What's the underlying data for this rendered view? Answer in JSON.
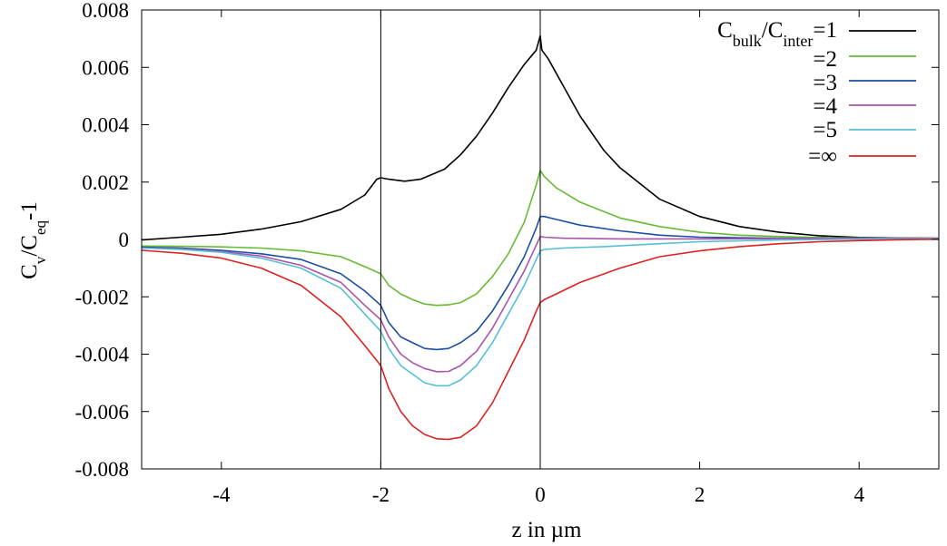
{
  "chart_data": {
    "type": "line",
    "title": "",
    "xlabel": "z in µm",
    "ylabel": {
      "base": "C",
      "sub1": "v",
      "slash": "/C",
      "sub2": "eq",
      "suffix": "-1"
    },
    "xlim": [
      -5,
      5
    ],
    "ylim": [
      -0.008,
      0.008
    ],
    "xticks": [
      {
        "v": -4,
        "label": "-4"
      },
      {
        "v": -2,
        "label": "-2"
      },
      {
        "v": 0,
        "label": "0"
      },
      {
        "v": 2,
        "label": "2"
      },
      {
        "v": 4,
        "label": "4"
      }
    ],
    "yticks": [
      {
        "v": 0.008,
        "label": "0.008"
      },
      {
        "v": 0.006,
        "label": "0.006"
      },
      {
        "v": 0.004,
        "label": "0.004"
      },
      {
        "v": 0.002,
        "label": "0.002"
      },
      {
        "v": 0,
        "label": "0"
      },
      {
        "v": -0.002,
        "label": "-0.002"
      },
      {
        "v": -0.004,
        "label": "-0.004"
      },
      {
        "v": -0.006,
        "label": "-0.006"
      },
      {
        "v": -0.008,
        "label": "-0.008"
      }
    ],
    "vlines": [
      -2,
      0
    ],
    "grid": false,
    "legend_position": "top-right",
    "legend_first": {
      "base": "C",
      "sub1": "bulk",
      "mid": "/C",
      "sub2": "inter",
      "suffix": "=1"
    },
    "series": [
      {
        "name": "=1",
        "color": "#000000",
        "points": [
          [
            -5,
            -2e-05
          ],
          [
            -4.5,
            8e-05
          ],
          [
            -4,
            0.00018
          ],
          [
            -3.5,
            0.00036
          ],
          [
            -3,
            0.00062
          ],
          [
            -2.5,
            0.00105
          ],
          [
            -2.2,
            0.00155
          ],
          [
            -2.05,
            0.0021
          ],
          [
            -2.0,
            0.00215
          ],
          [
            -1.9,
            0.0021
          ],
          [
            -1.7,
            0.00203
          ],
          [
            -1.5,
            0.0021
          ],
          [
            -1.2,
            0.00245
          ],
          [
            -1,
            0.00295
          ],
          [
            -0.8,
            0.0036
          ],
          [
            -0.6,
            0.0044
          ],
          [
            -0.4,
            0.0053
          ],
          [
            -0.2,
            0.0061
          ],
          [
            -0.05,
            0.0066
          ],
          [
            0,
            0.0071
          ],
          [
            0.02,
            0.0066
          ],
          [
            0.1,
            0.0063
          ],
          [
            0.3,
            0.0053
          ],
          [
            0.5,
            0.0043
          ],
          [
            0.8,
            0.0031
          ],
          [
            1,
            0.0025
          ],
          [
            1.5,
            0.0014
          ],
          [
            2,
            0.0008
          ],
          [
            2.5,
            0.00045
          ],
          [
            3,
            0.00025
          ],
          [
            3.5,
            0.00013
          ],
          [
            4,
            7e-05
          ],
          [
            4.5,
            5e-05
          ],
          [
            5,
            4e-05
          ]
        ]
      },
      {
        "name": "=2",
        "color": "#66bb33",
        "points": [
          [
            -5,
            -0.00023
          ],
          [
            -4.5,
            -0.00024
          ],
          [
            -4,
            -0.00026
          ],
          [
            -3.5,
            -0.0003
          ],
          [
            -3,
            -0.0004
          ],
          [
            -2.5,
            -0.0006
          ],
          [
            -2.2,
            -0.00095
          ],
          [
            -2.0,
            -0.0012
          ],
          [
            -1.9,
            -0.0016
          ],
          [
            -1.75,
            -0.0019
          ],
          [
            -1.6,
            -0.0021
          ],
          [
            -1.45,
            -0.00225
          ],
          [
            -1.3,
            -0.0023
          ],
          [
            -1.15,
            -0.00228
          ],
          [
            -1,
            -0.0022
          ],
          [
            -0.8,
            -0.0019
          ],
          [
            -0.6,
            -0.0013
          ],
          [
            -0.4,
            -0.0005
          ],
          [
            -0.2,
            0.0006
          ],
          [
            -0.05,
            0.0019
          ],
          [
            0,
            0.0024
          ],
          [
            0.05,
            0.0022
          ],
          [
            0.2,
            0.0018
          ],
          [
            0.5,
            0.0013
          ],
          [
            1,
            0.00075
          ],
          [
            1.5,
            0.00045
          ],
          [
            2,
            0.00025
          ],
          [
            2.5,
            0.00015
          ],
          [
            3,
            0.0001
          ],
          [
            3.5,
            7e-05
          ],
          [
            4,
            5e-05
          ],
          [
            4.5,
            4e-05
          ],
          [
            5,
            4e-05
          ]
        ]
      },
      {
        "name": "=3",
        "color": "#1a4fa3",
        "points": [
          [
            -5,
            -0.00027
          ],
          [
            -4.5,
            -0.0003
          ],
          [
            -4,
            -0.00038
          ],
          [
            -3.5,
            -0.0005
          ],
          [
            -3,
            -0.0007
          ],
          [
            -2.5,
            -0.0012
          ],
          [
            -2.2,
            -0.0018
          ],
          [
            -2.0,
            -0.0023
          ],
          [
            -1.9,
            -0.0029
          ],
          [
            -1.75,
            -0.0034
          ],
          [
            -1.6,
            -0.0036
          ],
          [
            -1.45,
            -0.0038
          ],
          [
            -1.3,
            -0.00384
          ],
          [
            -1.15,
            -0.0038
          ],
          [
            -1,
            -0.0036
          ],
          [
            -0.8,
            -0.0032
          ],
          [
            -0.6,
            -0.0025
          ],
          [
            -0.4,
            -0.0016
          ],
          [
            -0.2,
            -0.0006
          ],
          [
            -0.05,
            0.0004
          ],
          [
            0,
            0.0008
          ],
          [
            0.05,
            0.0008
          ],
          [
            0.2,
            0.0007
          ],
          [
            0.5,
            0.0005
          ],
          [
            1,
            0.0003
          ],
          [
            1.5,
            0.00015
          ],
          [
            2,
            8e-05
          ],
          [
            3,
            4e-05
          ],
          [
            4,
            4e-05
          ],
          [
            5,
            4e-05
          ]
        ]
      },
      {
        "name": "=4",
        "color": "#aa55aa",
        "points": [
          [
            -5,
            -0.0003
          ],
          [
            -4.5,
            -0.00033
          ],
          [
            -4,
            -0.00042
          ],
          [
            -3.5,
            -0.00058
          ],
          [
            -3,
            -0.0009
          ],
          [
            -2.5,
            -0.0015
          ],
          [
            -2.2,
            -0.0023
          ],
          [
            -2.0,
            -0.0028
          ],
          [
            -1.9,
            -0.0034
          ],
          [
            -1.75,
            -0.004
          ],
          [
            -1.6,
            -0.0043
          ],
          [
            -1.45,
            -0.0045
          ],
          [
            -1.3,
            -0.00461
          ],
          [
            -1.15,
            -0.0046
          ],
          [
            -1,
            -0.0044
          ],
          [
            -0.8,
            -0.0039
          ],
          [
            -0.6,
            -0.0031
          ],
          [
            -0.4,
            -0.0021
          ],
          [
            -0.2,
            -0.0011
          ],
          [
            -0.05,
            -0.0002
          ],
          [
            0,
            0.0001
          ],
          [
            0.05,
            8e-05
          ],
          [
            0.3,
            4e-05
          ],
          [
            1,
            2e-05
          ],
          [
            2,
            2e-05
          ],
          [
            3,
            3e-05
          ],
          [
            4,
            4e-05
          ],
          [
            5,
            4e-05
          ]
        ]
      },
      {
        "name": "=5",
        "color": "#55c0d5",
        "points": [
          [
            -5,
            -0.0003
          ],
          [
            -4.5,
            -0.00035
          ],
          [
            -4,
            -0.00045
          ],
          [
            -3.5,
            -0.00065
          ],
          [
            -3,
            -0.001
          ],
          [
            -2.5,
            -0.0017
          ],
          [
            -2.2,
            -0.0026
          ],
          [
            -2.0,
            -0.0032
          ],
          [
            -1.9,
            -0.0038
          ],
          [
            -1.75,
            -0.0044
          ],
          [
            -1.6,
            -0.0047
          ],
          [
            -1.45,
            -0.005
          ],
          [
            -1.3,
            -0.0051
          ],
          [
            -1.15,
            -0.0051
          ],
          [
            -1,
            -0.0049
          ],
          [
            -0.8,
            -0.0044
          ],
          [
            -0.6,
            -0.0036
          ],
          [
            -0.4,
            -0.0026
          ],
          [
            -0.2,
            -0.0016
          ],
          [
            -0.05,
            -0.0007
          ],
          [
            0,
            -0.0004
          ],
          [
            0.05,
            -0.00035
          ],
          [
            0.3,
            -0.0003
          ],
          [
            0.8,
            -0.00025
          ],
          [
            1.5,
            -0.00015
          ],
          [
            2,
            -8e-05
          ],
          [
            3,
            -2e-05
          ],
          [
            4,
            1e-05
          ],
          [
            5,
            3e-05
          ]
        ]
      },
      {
        "name": "=∞",
        "color": "#dd2222",
        "points": [
          [
            -5,
            -0.00038
          ],
          [
            -4.5,
            -0.00048
          ],
          [
            -4,
            -0.00065
          ],
          [
            -3.5,
            -0.001
          ],
          [
            -3,
            -0.0016
          ],
          [
            -2.5,
            -0.0027
          ],
          [
            -2.2,
            -0.0037
          ],
          [
            -2.0,
            -0.0044
          ],
          [
            -1.9,
            -0.0052
          ],
          [
            -1.75,
            -0.006
          ],
          [
            -1.6,
            -0.0065
          ],
          [
            -1.45,
            -0.0068
          ],
          [
            -1.3,
            -0.00695
          ],
          [
            -1.15,
            -0.00697
          ],
          [
            -1,
            -0.0069
          ],
          [
            -0.8,
            -0.0065
          ],
          [
            -0.6,
            -0.0057
          ],
          [
            -0.4,
            -0.0046
          ],
          [
            -0.2,
            -0.0035
          ],
          [
            -0.05,
            -0.0025
          ],
          [
            0,
            -0.0022
          ],
          [
            0.05,
            -0.0021
          ],
          [
            0.2,
            -0.0019
          ],
          [
            0.5,
            -0.0015
          ],
          [
            1,
            -0.001
          ],
          [
            1.5,
            -0.0006
          ],
          [
            2,
            -0.0004
          ],
          [
            2.5,
            -0.00025
          ],
          [
            3,
            -0.00015
          ],
          [
            3.5,
            -8e-05
          ],
          [
            4,
            -4e-05
          ],
          [
            4.5,
            -1e-05
          ],
          [
            5,
            1e-05
          ]
        ]
      }
    ]
  }
}
